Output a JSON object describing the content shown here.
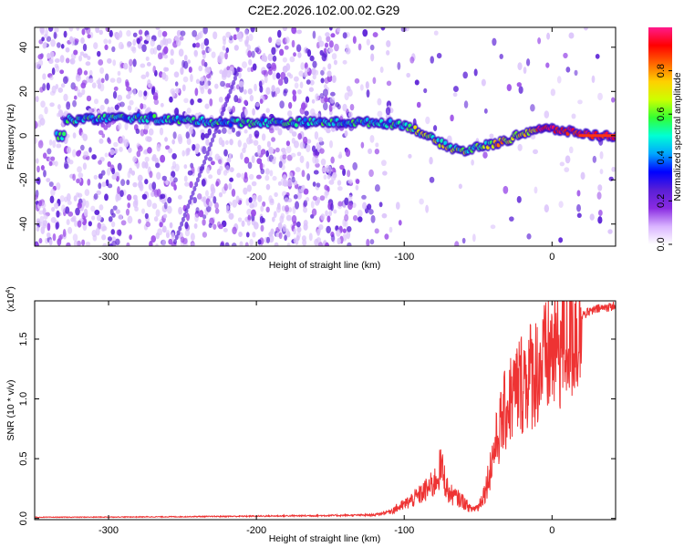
{
  "title": "C2E2.2026.102.00.02.G29",
  "colors": {
    "snr_line": "#ee3333",
    "trace_core": "#ff3311",
    "colormap": [
      "#ffffff",
      "#d9b3ff",
      "#8a2be2",
      "#5a1fd6",
      "#0000ff",
      "#00a6ff",
      "#00ffd5",
      "#33ff33",
      "#ccff00",
      "#ffd000",
      "#ff6600",
      "#ff0000",
      "#ff1a8c"
    ]
  },
  "chart_data": [
    {
      "type": "heatmap",
      "name": "spectrogram",
      "xlabel": "Height of straight line (km)",
      "ylabel": "Frequency (Hz)",
      "xlim": [
        -350,
        43
      ],
      "ylim": [
        -50,
        49
      ],
      "xticks": [
        -300,
        -200,
        -100,
        0
      ],
      "yticks": [
        -40,
        -20,
        0,
        20,
        40
      ],
      "trace": {
        "x": [
          -330,
          -300,
          -280,
          -250,
          -220,
          -180,
          -150,
          -120,
          -100,
          -90,
          -80,
          -70,
          -60,
          -50,
          -40,
          -30,
          -20,
          -10,
          0,
          10,
          20,
          30,
          43
        ],
        "y": [
          7,
          8,
          8,
          7,
          6,
          6,
          6,
          6,
          5,
          2,
          -2,
          -5,
          -7,
          -5,
          -4,
          -2,
          1,
          3,
          3,
          2,
          1,
          0,
          0
        ]
      },
      "colorbar": {
        "label": "Normalized spectral amplitude",
        "min": 0.0,
        "max": 1.0,
        "ticks": [
          "0.0",
          "0.2",
          "0.4",
          "0.6",
          "0.8"
        ],
        "tick_values": [
          0.0,
          0.2,
          0.4,
          0.6,
          0.8
        ]
      }
    },
    {
      "type": "line",
      "name": "snr",
      "xlabel": "Height of straight line (km)",
      "ylabel": "SNR (10 * v/v)",
      "multiplier_prefix": "(x10",
      "multiplier_exp": "4",
      "multiplier_suffix": ")",
      "xlim": [
        -350,
        43
      ],
      "ylim": [
        -0.01,
        1.82
      ],
      "xticks": [
        -300,
        -200,
        -100,
        0
      ],
      "yticks": [
        "0.0",
        "0.5",
        "1.0",
        "1.5"
      ],
      "ytick_values": [
        0.0,
        0.5,
        1.0,
        1.5
      ],
      "series": [
        {
          "name": "SNR",
          "x": [
            -350,
            -300,
            -250,
            -200,
            -150,
            -120,
            -110,
            -100,
            -90,
            -80,
            -75,
            -70,
            -60,
            -55,
            -50,
            -45,
            -40,
            -35,
            -30,
            -25,
            -20,
            -15,
            -10,
            -5,
            0,
            5,
            10,
            15,
            20,
            30,
            43
          ],
          "y": [
            0.01,
            0.012,
            0.015,
            0.02,
            0.025,
            0.03,
            0.06,
            0.12,
            0.2,
            0.3,
            0.45,
            0.22,
            0.15,
            0.08,
            0.1,
            0.25,
            0.55,
            0.8,
            1.0,
            1.1,
            1.2,
            1.25,
            1.3,
            1.35,
            1.45,
            1.5,
            1.6,
            1.65,
            1.7,
            1.75,
            1.78
          ]
        }
      ]
    }
  ]
}
